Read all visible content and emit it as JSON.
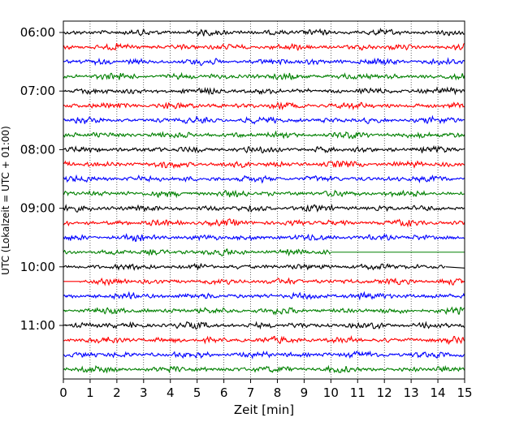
{
  "chart_data": {
    "type": "line",
    "title": "",
    "xlabel": "Zeit  [min]",
    "ylabel": "UTC (Lokalzeit = UTC + 01:00)",
    "xlim": [
      0,
      15
    ],
    "x_ticks": [
      "0",
      "1",
      "2",
      "3",
      "4",
      "5",
      "6",
      "7",
      "8",
      "9",
      "10",
      "11",
      "12",
      "13",
      "14",
      "15"
    ],
    "y_ticks": [
      "06:00",
      "07:00",
      "08:00",
      "09:00",
      "10:00",
      "11:00"
    ],
    "grid": "vertical dotted",
    "trace_interval_min": 15,
    "trace_colors": [
      "#000000",
      "#ff0000",
      "#0000ff",
      "#008000"
    ],
    "traces": [
      {
        "start": "06:00",
        "color": "#000000",
        "data_end_min": 15,
        "gap_start_min": null
      },
      {
        "start": "06:15",
        "color": "#ff0000",
        "data_end_min": 15,
        "gap_start_min": null
      },
      {
        "start": "06:30",
        "color": "#0000ff",
        "data_end_min": 15,
        "gap_start_min": null
      },
      {
        "start": "06:45",
        "color": "#008000",
        "data_end_min": 15,
        "gap_start_min": null
      },
      {
        "start": "07:00",
        "color": "#000000",
        "data_end_min": 15,
        "gap_start_min": null
      },
      {
        "start": "07:15",
        "color": "#ff0000",
        "data_end_min": 15,
        "gap_start_min": null
      },
      {
        "start": "07:30",
        "color": "#0000ff",
        "data_end_min": 15,
        "gap_start_min": null
      },
      {
        "start": "07:45",
        "color": "#008000",
        "data_end_min": 15,
        "gap_start_min": null
      },
      {
        "start": "08:00",
        "color": "#000000",
        "data_end_min": 15,
        "gap_start_min": null
      },
      {
        "start": "08:15",
        "color": "#ff0000",
        "data_end_min": 15,
        "gap_start_min": null
      },
      {
        "start": "08:30",
        "color": "#0000ff",
        "data_end_min": 15,
        "gap_start_min": null
      },
      {
        "start": "08:45",
        "color": "#008000",
        "data_end_min": 15,
        "gap_start_min": null
      },
      {
        "start": "09:00",
        "color": "#000000",
        "data_end_min": 15,
        "gap_start_min": null
      },
      {
        "start": "09:15",
        "color": "#ff0000",
        "data_end_min": 15,
        "gap_start_min": null
      },
      {
        "start": "09:30",
        "color": "#0000ff",
        "data_end_min": 15,
        "gap_start_min": null
      },
      {
        "start": "09:45",
        "color": "#008000",
        "data_end_min": 10,
        "gap_start_min": null
      },
      {
        "start": "10:00",
        "color": "#000000",
        "data_end_min": 14.3,
        "gap_start_min": null
      },
      {
        "start": "10:15",
        "color": "#ff0000",
        "data_end_min": 15,
        "gap_start_min": 0.6
      },
      {
        "start": "10:30",
        "color": "#0000ff",
        "data_end_min": 15,
        "gap_start_min": null
      },
      {
        "start": "10:45",
        "color": "#008000",
        "data_end_min": 15,
        "gap_start_min": null
      },
      {
        "start": "11:00",
        "color": "#000000",
        "data_end_min": 15,
        "gap_start_min": null
      },
      {
        "start": "11:15",
        "color": "#ff0000",
        "data_end_min": 15,
        "gap_start_min": null
      },
      {
        "start": "11:30",
        "color": "#0000ff",
        "data_end_min": 15,
        "gap_start_min": null
      },
      {
        "start": "11:45",
        "color": "#008000",
        "data_end_min": 15,
        "gap_start_min": null
      }
    ]
  }
}
